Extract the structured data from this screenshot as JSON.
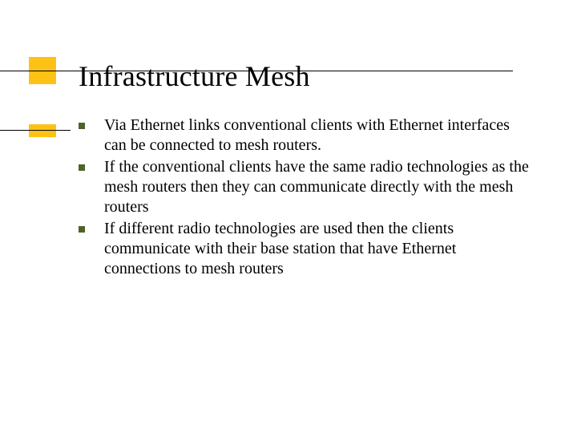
{
  "slide": {
    "title": "Infrastructure Mesh",
    "bullets": [
      "Via Ethernet links conventional clients with Ethernet interfaces can be connected to mesh routers.",
      "If the conventional clients have the same radio technologies as the mesh routers then they can communicate directly with the mesh routers",
      "If different radio technologies are used then the clients communicate with their base station that have Ethernet connections to mesh routers"
    ]
  },
  "style": {
    "accent_color": "#fec216",
    "bullet_color": "#4f6228",
    "line_color": "#000000",
    "background_color": "#ffffff",
    "title_fontsize": 36,
    "body_fontsize": 20,
    "font_family": "Times New Roman"
  }
}
